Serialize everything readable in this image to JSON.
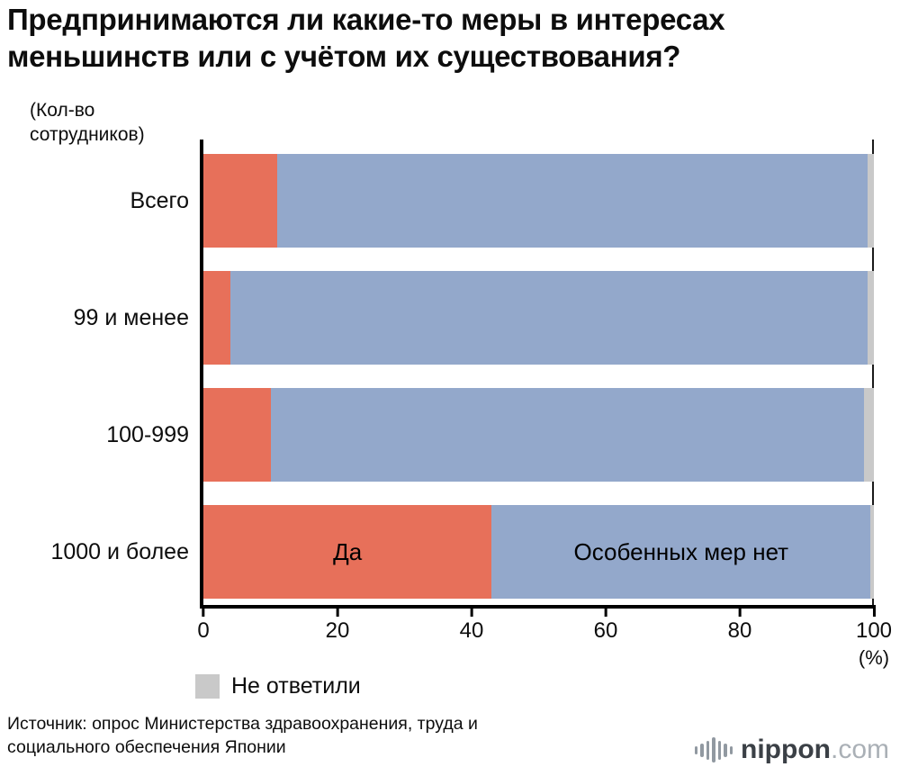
{
  "title": "Предпринимаются ли какие-то меры в интересах\nменьшинств или с учётом их существования?",
  "axis_note": "(Кол-во\nсотрудников)",
  "legend": {
    "label": "Не ответили"
  },
  "source": "Источник: опрос Министерства здравоохранения, труда и\nсоциального обеспечения Японии",
  "logo": {
    "name": "nippon",
    "tld": ".com",
    "icon": "waveform-icon"
  },
  "chart_data": {
    "type": "bar",
    "orientation": "horizontal",
    "stacked": true,
    "title": "Предпринимаются ли какие-то меры в интересах меньшинств или с учётом их существования?",
    "ylabel": "(Кол-во сотрудников)",
    "xlabel": "(%)",
    "categories": [
      "Всего",
      "99 и менее",
      "100-999",
      "1000 и более"
    ],
    "series": [
      {
        "name": "Да",
        "color": "#e7705a",
        "values": [
          11,
          4,
          10,
          43
        ]
      },
      {
        "name": "Особенных мер нет",
        "color": "#93a8cb",
        "values": [
          88,
          95,
          88.5,
          56.5
        ]
      },
      {
        "name": "Не ответили",
        "color": "#c9c9c9",
        "values": [
          1,
          1,
          1.5,
          0.5
        ]
      }
    ],
    "in_bar_label_row": 3,
    "x_ticks": [
      0,
      20,
      40,
      60,
      80,
      100
    ],
    "x_unit_label": "(%)",
    "xlim": [
      0,
      100
    ],
    "grid": false,
    "legend_position": "bottom-left"
  }
}
